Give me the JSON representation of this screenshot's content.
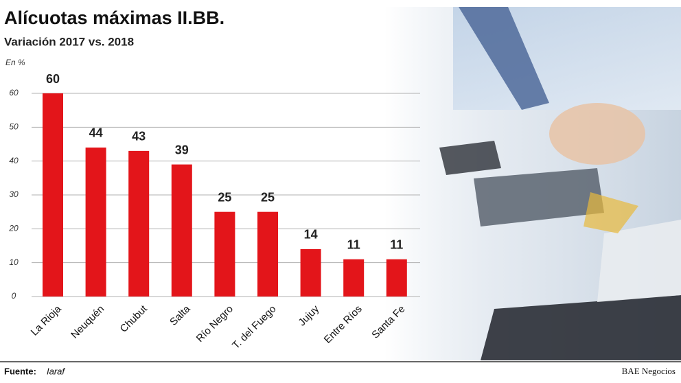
{
  "chart_data": {
    "type": "bar",
    "title": "Alícuotas máximas II.BB.",
    "subtitle": "Variación 2017 vs. 2018",
    "y_label": "En %",
    "categories": [
      "La Rioja",
      "Neuquén",
      "Chubut",
      "Salta",
      "Río Negro",
      "T. del Fuego",
      "Jujuy",
      "Entre Ríos",
      "Santa Fe"
    ],
    "values": [
      60,
      44,
      43,
      39,
      25,
      25,
      14,
      11,
      11
    ],
    "color": "#e3151a",
    "ylim": [
      0,
      60
    ],
    "yticks": [
      0,
      10,
      20,
      30,
      40,
      50,
      60
    ],
    "grid": true,
    "source_label": "Fuente:",
    "source": "Iaraf",
    "credit": "BAE Negocios"
  }
}
